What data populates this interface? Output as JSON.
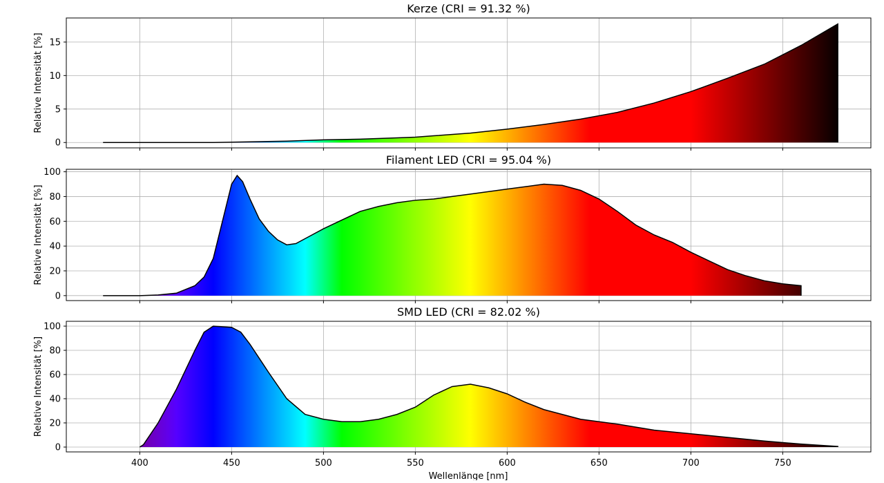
{
  "xlabel": "Wellenlänge [nm]",
  "chart_data": [
    {
      "type": "area",
      "title": "Kerze (CRI = 91.32 %)",
      "ylabel": "Relative Intensität [%]",
      "xlim": [
        360,
        798
      ],
      "ylim": [
        -0.8,
        18.6
      ],
      "yticks": [
        0,
        5,
        10,
        15
      ],
      "xticks": [
        400,
        450,
        500,
        550,
        600,
        650,
        700,
        750
      ],
      "show_xtick_labels": false,
      "grid": true,
      "fill": "spectral-gradient",
      "x": [
        380,
        400,
        420,
        440,
        460,
        480,
        500,
        520,
        540,
        550,
        560,
        580,
        600,
        620,
        640,
        660,
        680,
        700,
        720,
        740,
        760,
        780
      ],
      "y": [
        0.0,
        0.0,
        0.0,
        0.0,
        0.1,
        0.2,
        0.4,
        0.5,
        0.7,
        0.8,
        1.0,
        1.4,
        2.0,
        2.7,
        3.5,
        4.5,
        5.9,
        7.6,
        9.6,
        11.7,
        14.5,
        17.7
      ]
    },
    {
      "type": "area",
      "title": "Filament LED (CRI = 95.04 %)",
      "ylabel": "Relative Intensität [%]",
      "xlim": [
        360,
        798
      ],
      "ylim": [
        -4,
        102
      ],
      "yticks": [
        0,
        20,
        40,
        60,
        80,
        100
      ],
      "xticks": [
        400,
        450,
        500,
        550,
        600,
        650,
        700,
        750
      ],
      "show_xtick_labels": false,
      "grid": true,
      "fill": "spectral-gradient",
      "x": [
        380,
        400,
        410,
        420,
        430,
        435,
        440,
        445,
        450,
        453,
        456,
        460,
        465,
        470,
        475,
        480,
        485,
        490,
        500,
        510,
        520,
        530,
        540,
        550,
        560,
        570,
        580,
        590,
        600,
        610,
        620,
        630,
        640,
        650,
        660,
        670,
        680,
        690,
        700,
        710,
        720,
        730,
        740,
        750,
        760
      ],
      "y": [
        0,
        0,
        0.5,
        2,
        8,
        15,
        30,
        60,
        90,
        97,
        92,
        78,
        62,
        52,
        45,
        41,
        42,
        46,
        54,
        61,
        68,
        72,
        75,
        77,
        78,
        80,
        82,
        84,
        86,
        88,
        90,
        89,
        85,
        78,
        68,
        57,
        49,
        43,
        35,
        28,
        21,
        16,
        12,
        9.5,
        8
      ]
    },
    {
      "type": "area",
      "title": "SMD LED (CRI = 82.02 %)",
      "ylabel": "Relative Intensität [%]",
      "xlim": [
        360,
        798
      ],
      "ylim": [
        -4,
        104
      ],
      "yticks": [
        0,
        20,
        40,
        60,
        80,
        100
      ],
      "xticks": [
        400,
        450,
        500,
        550,
        600,
        650,
        700,
        750
      ],
      "show_xtick_labels": true,
      "grid": true,
      "fill": "spectral-gradient",
      "x": [
        400,
        402,
        410,
        420,
        430,
        435,
        440,
        450,
        455,
        460,
        470,
        480,
        490,
        500,
        510,
        520,
        530,
        540,
        550,
        560,
        570,
        580,
        590,
        600,
        610,
        620,
        630,
        640,
        660,
        680,
        700,
        720,
        740,
        760,
        780
      ],
      "y": [
        0,
        2,
        20,
        48,
        80,
        95,
        100,
        99,
        95,
        85,
        62,
        40,
        27,
        23,
        21,
        21,
        23,
        27,
        33,
        43,
        50,
        52,
        49,
        44,
        37,
        31,
        27,
        23,
        19,
        14,
        11,
        8,
        5,
        2.5,
        0.5
      ]
    }
  ]
}
